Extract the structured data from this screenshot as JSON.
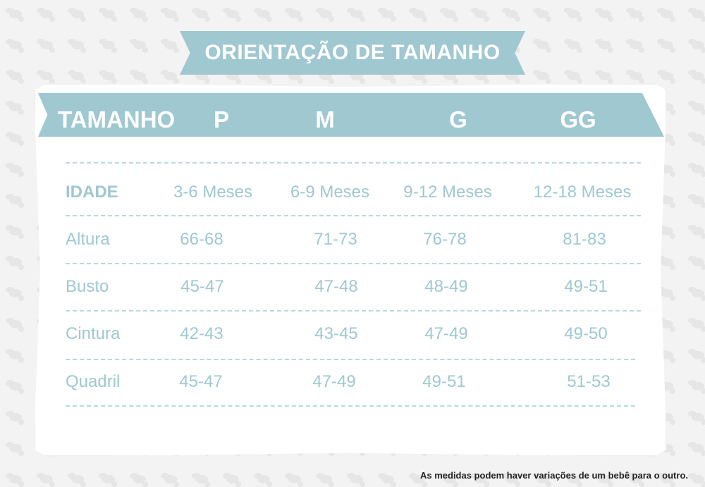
{
  "title": "ORIENTAÇÃO DE TAMANHO",
  "header": {
    "label": "TAMANHO",
    "sizes": [
      "P",
      "M",
      "G",
      "GG"
    ]
  },
  "rows": [
    {
      "label": "IDADE",
      "values": [
        "3-6 Meses",
        "6-9 Meses",
        "9-12 Meses",
        "12-18 Meses"
      ]
    },
    {
      "label": "Altura",
      "values": [
        "66-68",
        "71-73",
        "76-78",
        "81-83"
      ]
    },
    {
      "label": "Busto",
      "values": [
        "45-47",
        "47-48",
        "48-49",
        "49-51"
      ]
    },
    {
      "label": "Cintura",
      "values": [
        "42-43",
        "43-45",
        "47-49",
        "49-50"
      ]
    },
    {
      "label": "Quadril",
      "values": [
        "45-47",
        "47-49",
        "49-51",
        "51-53"
      ]
    }
  ],
  "footnote": "As medidas podem haver variações de um bebê para o outro.",
  "colors": {
    "accent": "#9fc8d1",
    "text_on_accent": "#ffffff",
    "footnote_text": "#222222",
    "background": "#f3f3f3"
  }
}
